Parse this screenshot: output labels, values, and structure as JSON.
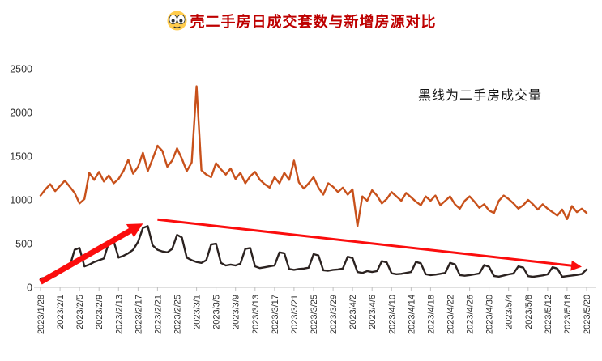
{
  "header": {
    "title": "壳二手房日成交套数与新增房源对比",
    "title_color": "#BE0000",
    "emoji": "flushed-face"
  },
  "annotation": {
    "text": "黑线为二手房成交量"
  },
  "chart_data": {
    "type": "line",
    "title": "壳二手房日成交套数与新增房源对比",
    "xlabel": "",
    "ylabel": "",
    "ylim": [
      0,
      2500
    ],
    "yticks": [
      0,
      500,
      1000,
      1500,
      2000,
      2500
    ],
    "grid": false,
    "legend_position": "none",
    "axis_color": "#BFBFBF",
    "points_per_tick": 4,
    "x_tick_labels": [
      "2023/1/28",
      "2023/2/1",
      "2023/2/5",
      "2023/2/9",
      "2023/2/13",
      "2023/2/17",
      "2023/2/21",
      "2023/2/25",
      "2023/3/1",
      "2023/3/5",
      "2023/3/9",
      "2023/3/13",
      "2023/3/17",
      "2023/3/21",
      "2023/3/25",
      "2023/3/29",
      "2023/4/2",
      "2023/4/6",
      "2023/4/10",
      "2023/4/14",
      "2023/4/18",
      "2023/4/22",
      "2023/4/26",
      "2023/4/30",
      "2023/5/4",
      "2023/5/8",
      "2023/5/12",
      "2023/5/16",
      "2023/5/20"
    ],
    "series": [
      {
        "name": "新增房源",
        "color": "#C8511B",
        "values": [
          1050,
          1120,
          1180,
          1100,
          1160,
          1220,
          1150,
          1080,
          960,
          1010,
          1310,
          1230,
          1320,
          1210,
          1280,
          1190,
          1240,
          1330,
          1460,
          1300,
          1380,
          1540,
          1330,
          1470,
          1620,
          1560,
          1380,
          1450,
          1590,
          1470,
          1330,
          1430,
          2300,
          1340,
          1290,
          1260,
          1420,
          1350,
          1290,
          1360,
          1240,
          1310,
          1190,
          1270,
          1320,
          1230,
          1180,
          1140,
          1260,
          1190,
          1310,
          1230,
          1450,
          1200,
          1130,
          1190,
          1260,
          1140,
          1060,
          1190,
          1150,
          1090,
          1140,
          1060,
          1120,
          700,
          1040,
          990,
          1110,
          1050,
          960,
          1010,
          1090,
          1040,
          990,
          1080,
          1030,
          980,
          940,
          1040,
          990,
          1050,
          940,
          990,
          1040,
          950,
          900,
          990,
          1040,
          980,
          910,
          950,
          880,
          850,
          990,
          1050,
          1010,
          960,
          900,
          940,
          1000,
          950,
          890,
          950,
          900,
          860,
          820,
          890,
          780,
          930,
          860,
          900,
          850
        ]
      },
      {
        "name": "二手房成交量",
        "color": "#2B2220",
        "values": [
          100,
          110,
          120,
          130,
          170,
          210,
          240,
          430,
          450,
          240,
          260,
          290,
          310,
          330,
          510,
          530,
          340,
          360,
          390,
          430,
          520,
          680,
          700,
          480,
          430,
          410,
          400,
          440,
          600,
          570,
          340,
          310,
          290,
          280,
          310,
          490,
          500,
          280,
          250,
          260,
          250,
          270,
          440,
          450,
          240,
          220,
          230,
          240,
          250,
          400,
          390,
          210,
          200,
          210,
          215,
          225,
          380,
          365,
          195,
          190,
          200,
          205,
          215,
          350,
          335,
          175,
          165,
          185,
          175,
          185,
          300,
          285,
          160,
          150,
          155,
          165,
          175,
          290,
          275,
          150,
          140,
          145,
          155,
          165,
          280,
          262,
          140,
          132,
          140,
          148,
          158,
          255,
          235,
          130,
          122,
          135,
          148,
          158,
          240,
          225,
          128,
          120,
          128,
          136,
          148,
          230,
          215,
          120,
          128,
          135,
          142,
          152,
          205
        ]
      }
    ],
    "arrow_color": "#FB0D0D",
    "arrows": [
      {
        "name": "up-trend-arrow",
        "from": {
          "i": 0,
          "v": 60
        },
        "to": {
          "i": 21,
          "v": 730
        },
        "width": 7
      },
      {
        "name": "down-trend-arrow",
        "from": {
          "i": 24,
          "v": 775
        },
        "to": {
          "i": 111,
          "v": 235
        },
        "width": 3
      }
    ]
  }
}
